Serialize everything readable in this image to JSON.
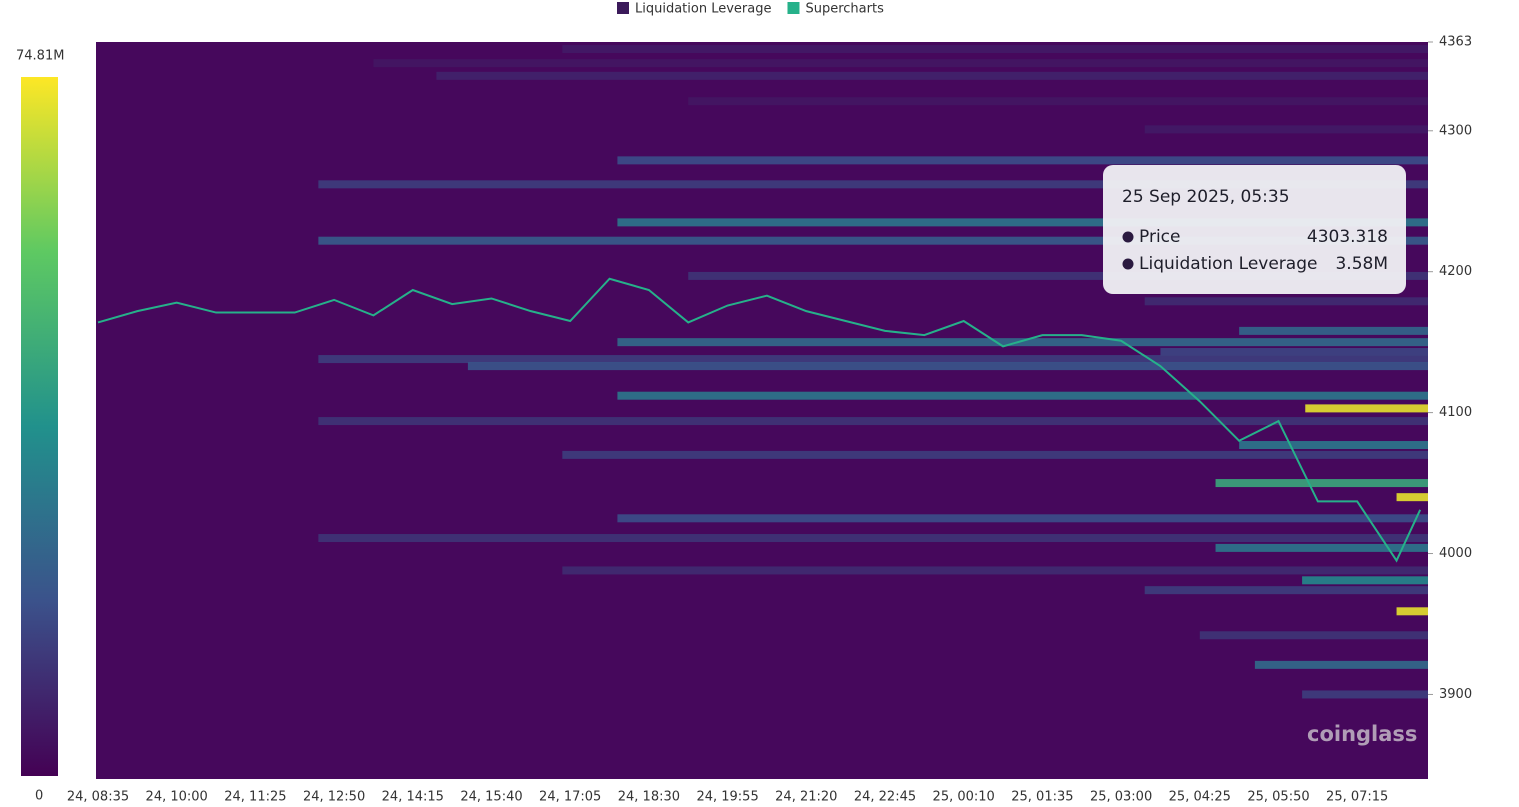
{
  "chart_data": {
    "type": "heatmap",
    "categories": [
      "24, 08:35",
      "24, 10:00",
      "24, 11:25",
      "24, 12:50",
      "24, 14:15",
      "24, 15:40",
      "24, 17:05",
      "24, 18:30",
      "24, 19:55",
      "24, 21:20",
      "24, 22:45",
      "25, 00:10",
      "25, 01:35",
      "25, 03:00",
      "25, 04:25",
      "25, 05:50",
      "25, 07:15"
    ],
    "ylim": [
      3840,
      4363
    ],
    "yticks": [
      3900,
      4000,
      4100,
      4200,
      4300,
      4363
    ],
    "colorbar": {
      "min": 0,
      "max": {
        "value": 74.81,
        "label": "74.81M"
      }
    },
    "series": [
      {
        "name": "Liquidation Leverage",
        "color": "#3b1a5a",
        "bands": [
          {
            "price": 4358,
            "start": 5.9,
            "value": 6
          },
          {
            "price": 4348,
            "start": 3.5,
            "value": 5
          },
          {
            "price": 4339,
            "start": 4.3,
            "value": 8
          },
          {
            "price": 4321,
            "start": 7.5,
            "value": 5
          },
          {
            "price": 4301,
            "start": 13.3,
            "value": 6
          },
          {
            "price": 4279,
            "start": 6.6,
            "value": 18
          },
          {
            "price": 4262,
            "start": 2.8,
            "value": 14
          },
          {
            "price": 4235,
            "start": 6.6,
            "value": 30
          },
          {
            "price": 4222,
            "start": 2.8,
            "value": 22
          },
          {
            "price": 4197,
            "start": 7.5,
            "value": 12
          },
          {
            "price": 4179,
            "start": 13.3,
            "value": 10
          },
          {
            "price": 4158,
            "start": 14.5,
            "value": 25
          },
          {
            "price": 4150,
            "start": 6.6,
            "value": 26
          },
          {
            "price": 4143,
            "start": 13.5,
            "value": 16
          },
          {
            "price": 4138,
            "start": 2.8,
            "value": 14
          },
          {
            "price": 4133,
            "start": 4.7,
            "value": 20
          },
          {
            "price": 4112,
            "start": 6.6,
            "value": 30
          },
          {
            "price": 4103,
            "start": 15.34,
            "value": 72
          },
          {
            "price": 4094,
            "start": 2.8,
            "value": 12
          },
          {
            "price": 4077,
            "start": 14.5,
            "value": 30
          },
          {
            "price": 4070,
            "start": 5.9,
            "value": 14
          },
          {
            "price": 4050,
            "start": 14.2,
            "value": 45
          },
          {
            "price": 4040,
            "start": 16.5,
            "value": 72
          },
          {
            "price": 4025,
            "start": 6.6,
            "value": 18
          },
          {
            "price": 4011,
            "start": 2.8,
            "value": 12
          },
          {
            "price": 4004,
            "start": 14.2,
            "value": 30
          },
          {
            "price": 3988,
            "start": 5.9,
            "value": 10
          },
          {
            "price": 3981,
            "start": 15.3,
            "value": 35
          },
          {
            "price": 3974,
            "start": 13.3,
            "value": 14
          },
          {
            "price": 3959,
            "start": 16.5,
            "value": 72
          },
          {
            "price": 3942,
            "start": 14.0,
            "value": 12
          },
          {
            "price": 3921,
            "start": 14.7,
            "value": 26
          },
          {
            "price": 3900,
            "start": 15.3,
            "value": 14
          }
        ]
      },
      {
        "name": "Supercharts",
        "color": "#26b18a",
        "x": [
          0,
          0.5,
          1,
          1.5,
          2,
          2.5,
          3,
          3.5,
          4,
          4.5,
          5,
          5.5,
          6,
          6.5,
          7,
          7.5,
          8,
          8.5,
          9,
          9.5,
          10,
          10.5,
          11,
          11.5,
          12,
          12.5,
          13,
          13.5,
          14,
          14.5,
          15,
          15.5,
          16,
          16.5,
          16.8
        ],
        "values": [
          4164,
          4172,
          4178,
          4171,
          4171,
          4171,
          4180,
          4169,
          4187,
          4177,
          4181,
          4172,
          4165,
          4195,
          4187,
          4164,
          4176,
          4183,
          4172,
          4165,
          4158,
          4155,
          4165,
          4147,
          4155,
          4155,
          4151,
          4133,
          4108,
          4080,
          4094,
          4037,
          4037,
          3995,
          4031
        ]
      }
    ],
    "tooltip": {
      "title": "25 Sep 2025, 05:35",
      "items": [
        {
          "name": "Price",
          "value": "4303.318"
        },
        {
          "name": "Liquidation Leverage",
          "value": "3.58M"
        }
      ]
    },
    "watermark": "coinglass"
  }
}
